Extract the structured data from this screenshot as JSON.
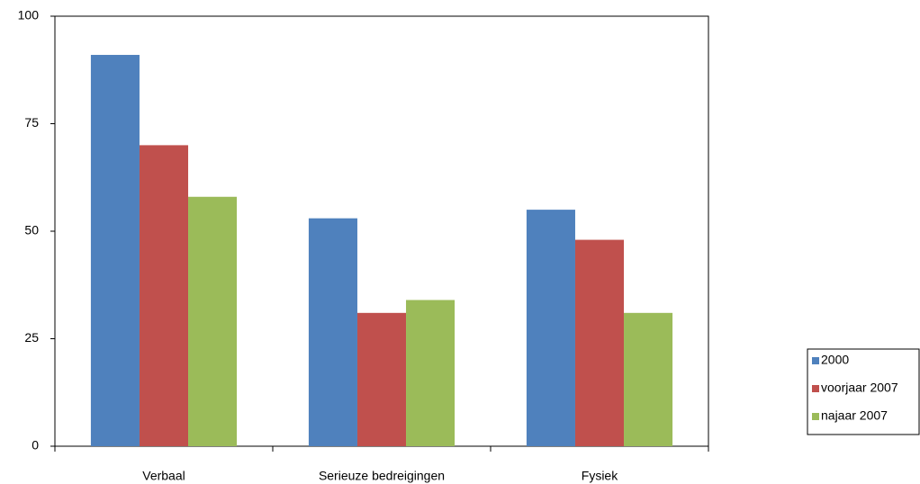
{
  "chart_data": {
    "type": "bar",
    "categories": [
      "Verbaal",
      "Serieuze bedreigingen",
      "Fysiek"
    ],
    "series": [
      {
        "name": "2000",
        "color": "#4f81bd",
        "values": [
          91,
          53,
          55
        ]
      },
      {
        "name": "voorjaar 2007",
        "color": "#c0504d",
        "values": [
          70,
          31,
          48
        ]
      },
      {
        "name": "najaar 2007",
        "color": "#9bbb59",
        "values": [
          58,
          34,
          31
        ]
      }
    ],
    "ylim": [
      0,
      100
    ],
    "yticks": [
      0,
      25,
      50,
      75,
      100
    ],
    "grid": false,
    "legend": "right"
  }
}
